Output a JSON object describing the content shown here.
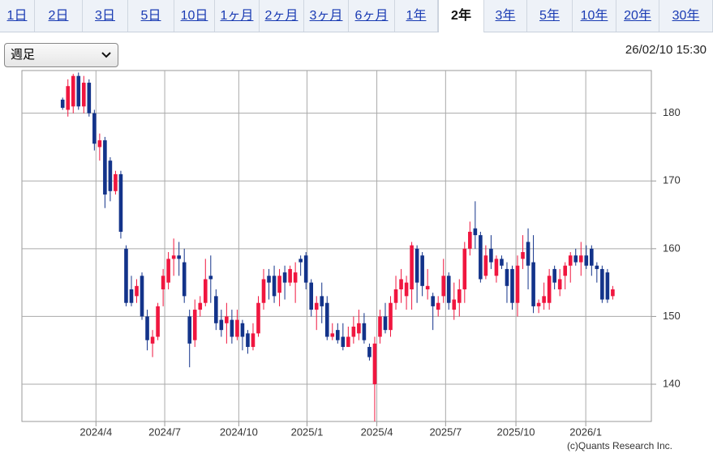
{
  "tabs": [
    "1日",
    "2日",
    "3日",
    "5日",
    "10日",
    "1ヶ月",
    "2ヶ月",
    "3ヶ月",
    "6ヶ月",
    "1年",
    "2年",
    "3年",
    "5年",
    "10年",
    "20年",
    "30年"
  ],
  "selected_tab": "2年",
  "period_select": "週足",
  "timestamp": "26/02/10 15:30",
  "credit": "(c)Quants Research Inc.",
  "chart_data": {
    "type": "candlestick",
    "up_color": "#f0163f",
    "down_color": "#13338a",
    "grid": true,
    "ylim": [
      134.5,
      186.3
    ],
    "yticks": [
      140,
      150,
      160,
      170,
      180
    ],
    "xlim": [
      -7.7,
      111.3
    ],
    "xticks": [
      {
        "value": 6.3,
        "label": "2024/4"
      },
      {
        "value": 19.3,
        "label": "2024/7"
      },
      {
        "value": 33.3,
        "label": "2024/10"
      },
      {
        "value": 46.2,
        "label": "2025/1"
      },
      {
        "value": 59.4,
        "label": "2025/4"
      },
      {
        "value": 72.4,
        "label": "2025/7"
      },
      {
        "value": 85.7,
        "label": "2025/10"
      },
      {
        "value": 98.9,
        "label": "2026/1"
      }
    ],
    "x": [
      0,
      1,
      2,
      3,
      4,
      5,
      6,
      7,
      8,
      9,
      10,
      11,
      12,
      13,
      14,
      15,
      16,
      17,
      18,
      19,
      20,
      21,
      22,
      23,
      24,
      25,
      26,
      27,
      28,
      29,
      30,
      31,
      32,
      33,
      34,
      35,
      36,
      37,
      38,
      39,
      40,
      41,
      42,
      43,
      44,
      45,
      46,
      47,
      48,
      49,
      50,
      51,
      52,
      53,
      54,
      55,
      56,
      57,
      58,
      59,
      60,
      61,
      62,
      63,
      64,
      65,
      66,
      67,
      68,
      69,
      70,
      71,
      72,
      73,
      74,
      75,
      76,
      77,
      78,
      79,
      80,
      81,
      82,
      83,
      84,
      85,
      86,
      87,
      88,
      89,
      90,
      91,
      92,
      93,
      94,
      95,
      96,
      97,
      98,
      99,
      100,
      101,
      102,
      103,
      104
    ],
    "open": [
      182,
      180.5,
      181,
      185.5,
      181,
      184.5,
      180,
      175,
      176,
      173,
      168.5,
      171,
      160,
      154,
      153,
      156,
      150,
      146,
      147,
      154,
      155,
      158.5,
      159,
      158,
      150,
      146.5,
      151,
      152,
      156,
      153,
      149.5,
      149,
      149.5,
      147,
      149,
      147.5,
      145.5,
      147.5,
      152,
      156,
      156,
      153.5,
      156.5,
      155,
      155,
      158.5,
      159,
      155,
      151,
      153,
      152,
      147,
      148,
      147,
      145.5,
      147,
      147.5,
      149,
      145.5,
      140,
      147,
      150,
      148,
      152,
      154,
      153,
      154,
      160,
      159,
      154,
      153,
      151,
      153,
      156,
      151,
      152,
      154,
      160,
      163,
      162,
      156,
      160,
      156,
      158.5,
      157,
      157,
      152,
      158.5,
      161,
      158,
      151.5,
      152,
      152,
      157,
      154,
      156,
      157.5,
      159,
      158,
      159,
      160,
      157.5,
      157,
      156.5,
      153
    ],
    "high": [
      182.3,
      185,
      185.8,
      186,
      185.5,
      185,
      180.5,
      177,
      176.5,
      173.5,
      171.5,
      171.5,
      160.5,
      156,
      155.5,
      156.5,
      151,
      148,
      152,
      157,
      159.5,
      161.5,
      161,
      160,
      151,
      152.5,
      153,
      158.5,
      159,
      154,
      151,
      152,
      151,
      151,
      149.5,
      148,
      149,
      153,
      157,
      157,
      157.5,
      157,
      157.5,
      157.5,
      158,
      159,
      159.5,
      155.5,
      153,
      155,
      153,
      149,
      149,
      149,
      148.5,
      150,
      151,
      150.5,
      146,
      147,
      151,
      152,
      153,
      156,
      157,
      156,
      161,
      160.5,
      159.5,
      157,
      153.5,
      153,
      158.5,
      156.5,
      155,
      155.5,
      161,
      164,
      167,
      162.5,
      160.5,
      162,
      159,
      159,
      158,
      157.5,
      159,
      162,
      163,
      162,
      152.5,
      155,
      157,
      157.5,
      157,
      158,
      159.5,
      160,
      161,
      160.5,
      160.5,
      158,
      157.5,
      157,
      154.5
    ],
    "low": [
      180.5,
      179.5,
      180,
      180.5,
      180,
      179.5,
      174.5,
      173,
      166,
      167,
      168,
      161.5,
      151.5,
      151.5,
      152,
      149.5,
      145,
      144,
      146.5,
      151.5,
      154,
      156,
      156,
      152,
      142.5,
      145.5,
      150,
      151.5,
      152,
      148,
      147,
      146,
      146,
      146.5,
      145,
      144.5,
      145,
      147,
      151,
      152.5,
      152,
      151.5,
      152.5,
      154.5,
      152,
      156,
      154,
      150,
      148,
      149,
      146.5,
      146.5,
      146,
      145,
      145.5,
      146,
      146.5,
      146,
      143.5,
      134.5,
      146,
      147.5,
      147,
      151,
      152,
      151,
      151,
      152,
      153,
      152.5,
      148,
      150,
      152,
      151,
      149.5,
      150,
      152,
      159,
      160,
      155,
      155.5,
      157,
      155,
      157,
      152,
      151,
      150,
      157,
      154,
      150.5,
      150.5,
      151,
      151,
      154,
      153,
      154,
      155,
      157.5,
      156,
      157,
      156,
      155,
      152,
      152,
      152.5
    ],
    "close": [
      180.8,
      184,
      185.5,
      181,
      184.5,
      180,
      175.5,
      176,
      168,
      168.5,
      171,
      162.5,
      152,
      152,
      154.5,
      150,
      146.5,
      147,
      151.5,
      156,
      158.5,
      159,
      158.5,
      153,
      146,
      151,
      152,
      155.5,
      155.5,
      149,
      148,
      150,
      147,
      149.5,
      147,
      145.5,
      147.5,
      152,
      155.5,
      155,
      153,
      156,
      155,
      157,
      156.5,
      158,
      155,
      151,
      152,
      151.5,
      147,
      147.5,
      146.5,
      145.5,
      147,
      148.5,
      149,
      146.5,
      144,
      146,
      150,
      148,
      152,
      154,
      155.5,
      155,
      160.5,
      155,
      154.5,
      154.5,
      151.5,
      152,
      156,
      152,
      152.5,
      154,
      160,
      162.5,
      162,
      155.5,
      159,
      158,
      158.5,
      157.5,
      154.5,
      152,
      157.5,
      159.5,
      157.5,
      151.5,
      152,
      153,
      156,
      155,
      155.5,
      157.5,
      159,
      158,
      159,
      157.5,
      157.5,
      157,
      152.5,
      152.5,
      154
    ]
  }
}
